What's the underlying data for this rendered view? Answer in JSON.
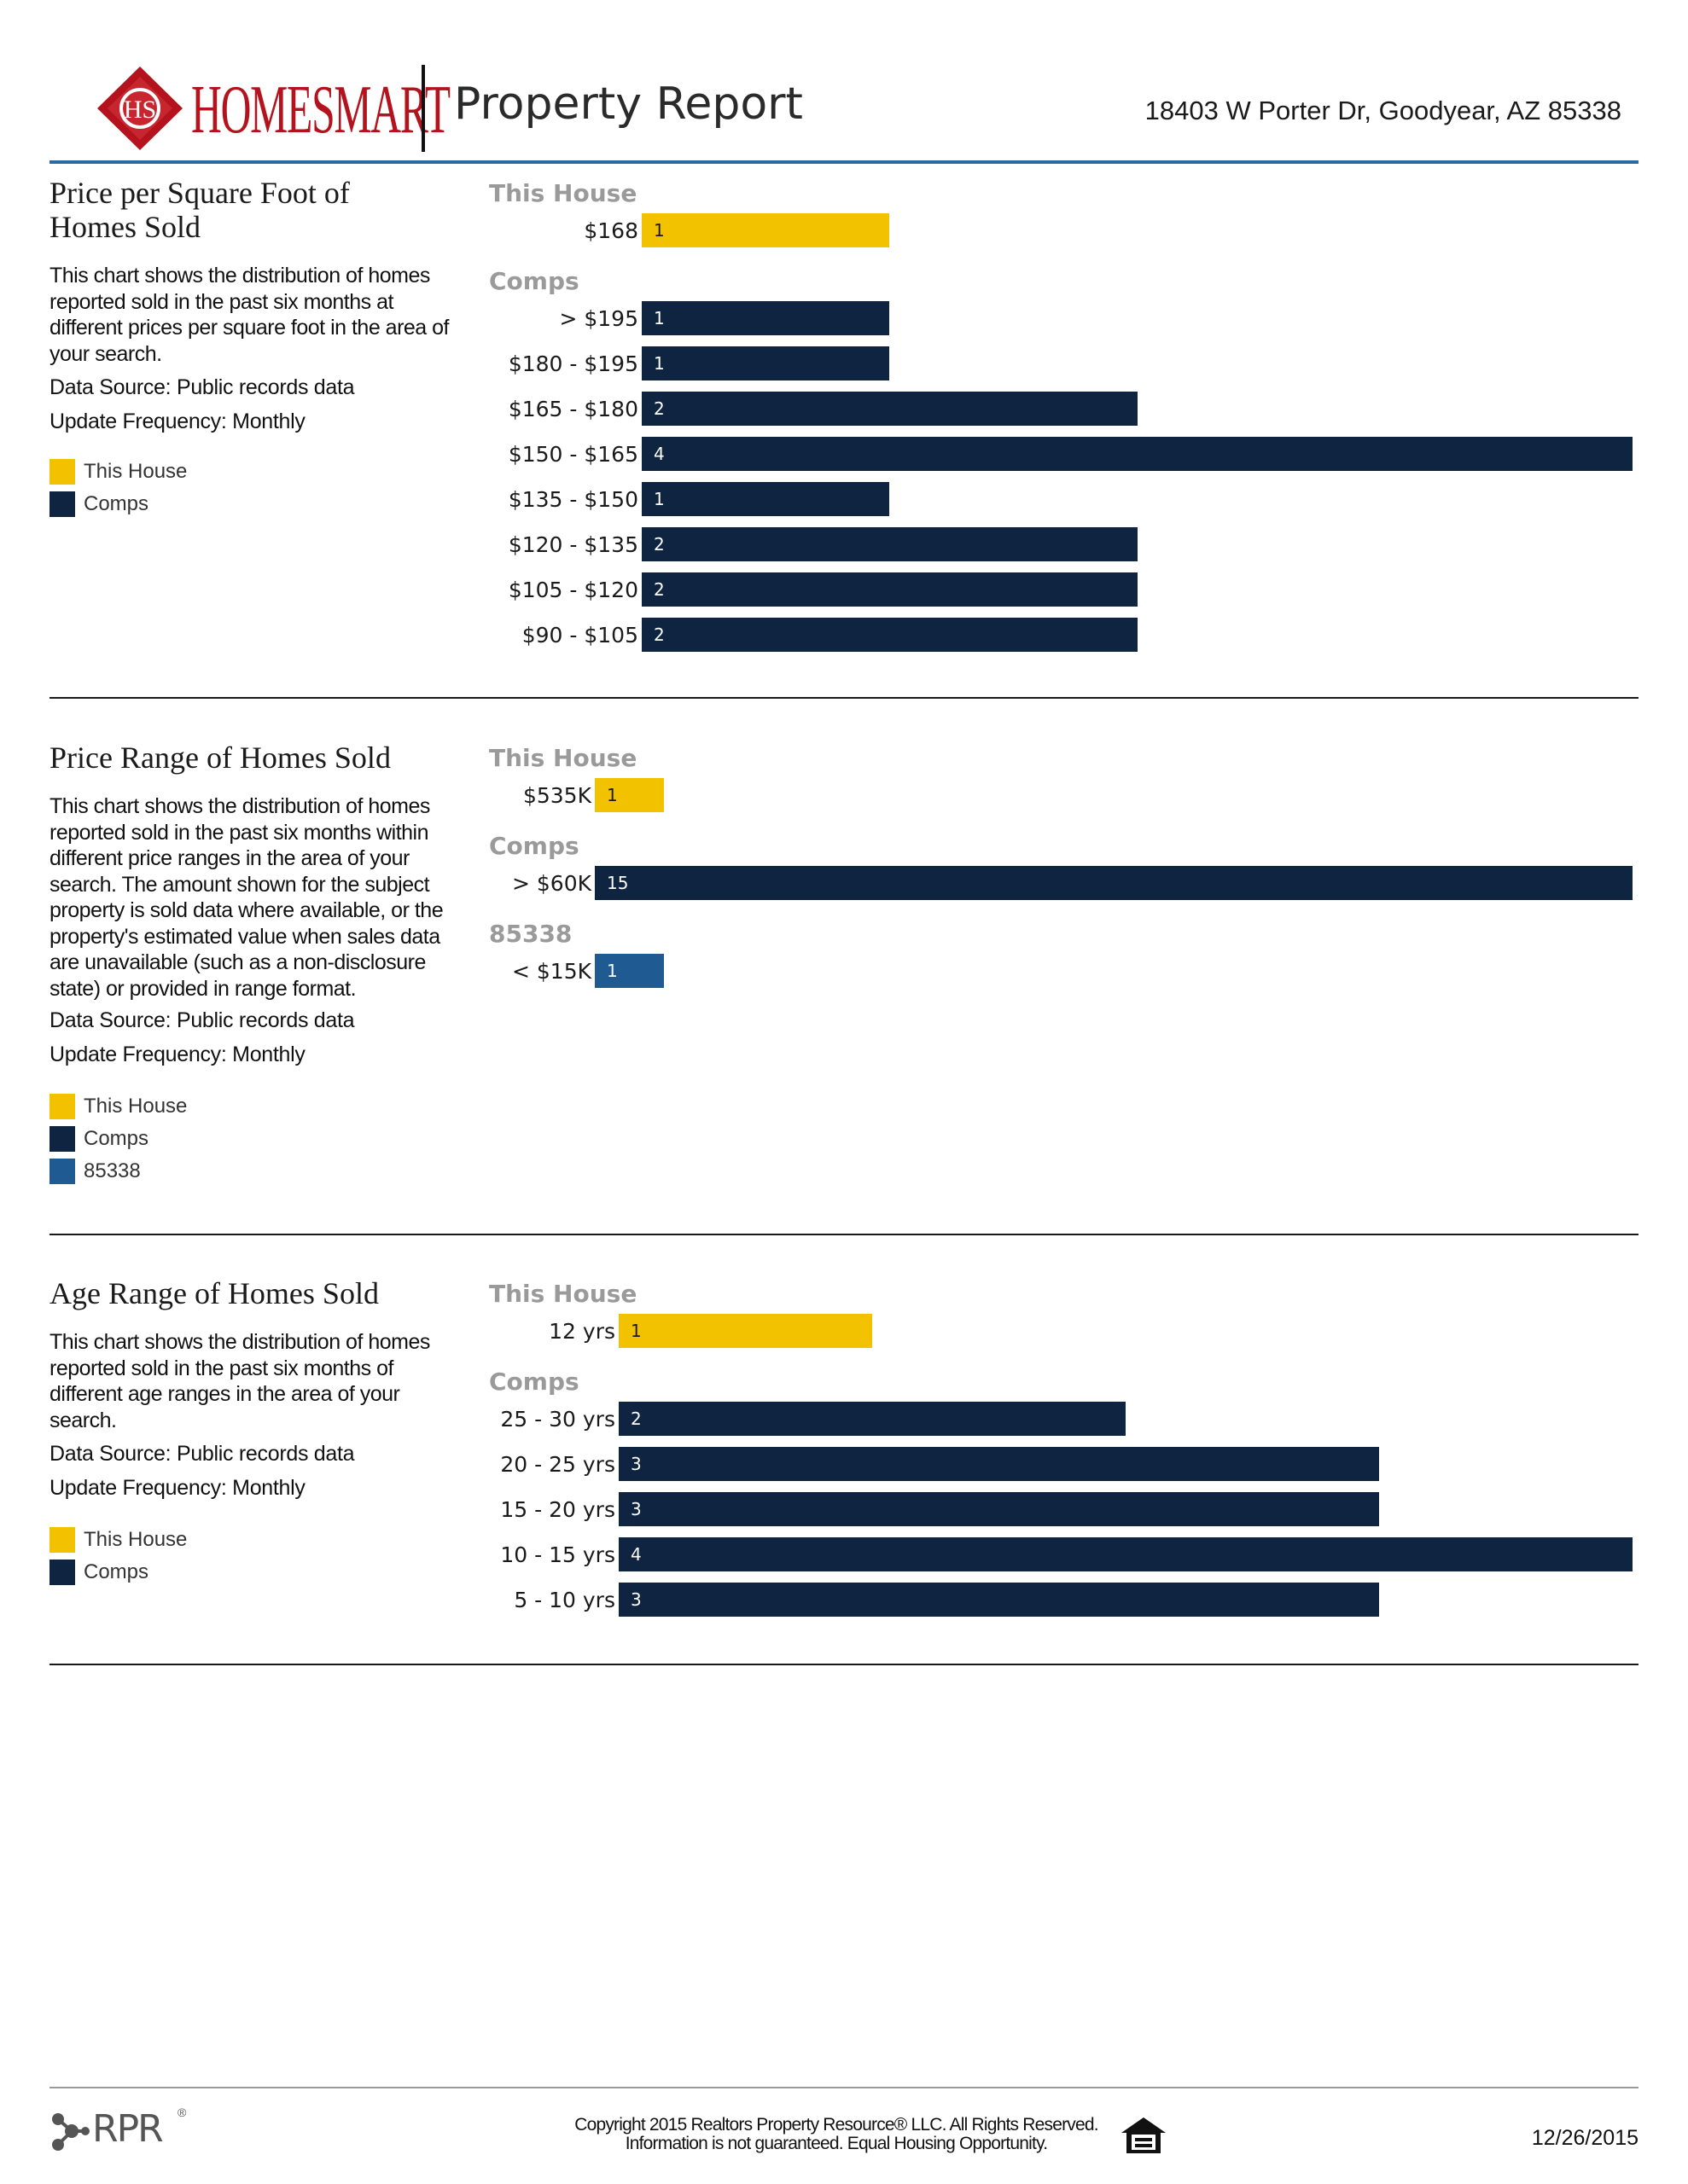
{
  "header": {
    "brand_name": "HOMESMART",
    "logo_monogram": "HS",
    "title": "Property Report",
    "address": "18403 W Porter Dr, Goodyear, AZ 85338"
  },
  "colors": {
    "this_house": "#F2C200",
    "comps": "#0E2440",
    "zip": "#1F5A92",
    "header_rule": "#2E6AA2",
    "brand_red": "#B4121C"
  },
  "sections": [
    {
      "title": "Price per Square Foot of Homes Sold",
      "description": "This chart shows the distribution of homes reported sold in the past six months at different prices per square foot in the area of your search.",
      "data_source": "Data Source: Public records data",
      "update_frequency": "Update Frequency: Monthly",
      "legend": [
        "This House",
        "Comps"
      ]
    },
    {
      "title": "Price Range of Homes Sold",
      "description": "This chart shows the distribution of homes reported sold in the past six months within different price ranges in the area of your search. The amount shown for the subject property is sold data where available, or the property's estimated value when sales data are unavailable (such as a non-disclosure state) or provided in range format.",
      "data_source": "Data Source: Public records data",
      "update_frequency": "Update Frequency: Monthly",
      "legend": [
        "This House",
        "Comps",
        "85338"
      ]
    },
    {
      "title": "Age Range of Homes Sold",
      "description": "This chart shows the distribution of homes reported sold in the past six months of different age ranges in the area of your search.",
      "data_source": "Data Source: Public records data",
      "update_frequency": "Update Frequency: Monthly",
      "legend": [
        "This House",
        "Comps"
      ]
    }
  ],
  "chart_data": [
    {
      "type": "bar",
      "orientation": "horizontal",
      "title": "Price per Square Foot of Homes Sold",
      "groups": [
        {
          "name": "This House",
          "rows": [
            {
              "label": "$168",
              "value": 1
            }
          ]
        },
        {
          "name": "Comps",
          "rows": [
            {
              "label": "> $195",
              "value": 1
            },
            {
              "label": "$180 - $195",
              "value": 1
            },
            {
              "label": "$165 - $180",
              "value": 2
            },
            {
              "label": "$150 - $165",
              "value": 4
            },
            {
              "label": "$135 - $150",
              "value": 1
            },
            {
              "label": "$120 - $135",
              "value": 2
            },
            {
              "label": "$105 - $120",
              "value": 2
            },
            {
              "label": "$90 - $105",
              "value": 2
            }
          ]
        }
      ],
      "max_value": 4
    },
    {
      "type": "bar",
      "orientation": "horizontal",
      "title": "Price Range of Homes Sold",
      "groups": [
        {
          "name": "This House",
          "rows": [
            {
              "label": "$535K",
              "value": 1
            }
          ]
        },
        {
          "name": "Comps",
          "rows": [
            {
              "label": "> $60K",
              "value": 15
            }
          ]
        },
        {
          "name": "85338",
          "rows": [
            {
              "label": "< $15K",
              "value": 1
            }
          ]
        }
      ],
      "max_value": 15
    },
    {
      "type": "bar",
      "orientation": "horizontal",
      "title": "Age Range of Homes Sold",
      "groups": [
        {
          "name": "This House",
          "rows": [
            {
              "label": "12 yrs",
              "value": 1
            }
          ]
        },
        {
          "name": "Comps",
          "rows": [
            {
              "label": "25 - 30 yrs",
              "value": 2
            },
            {
              "label": "20 - 25 yrs",
              "value": 3
            },
            {
              "label": "15 - 20 yrs",
              "value": 3
            },
            {
              "label": "10 - 15 yrs",
              "value": 4
            },
            {
              "label": "5 - 10 yrs",
              "value": 3
            }
          ]
        }
      ],
      "max_value": 4
    }
  ],
  "footer": {
    "rpr_logo_text": "RPR",
    "rpr_registered": "®",
    "copyright_line1": "Copyright 2015 Realtors Property Resource® LLC. All Rights Reserved.",
    "copyright_line2": "Information is not guaranteed. Equal Housing Opportunity.",
    "date": "12/26/2015"
  }
}
